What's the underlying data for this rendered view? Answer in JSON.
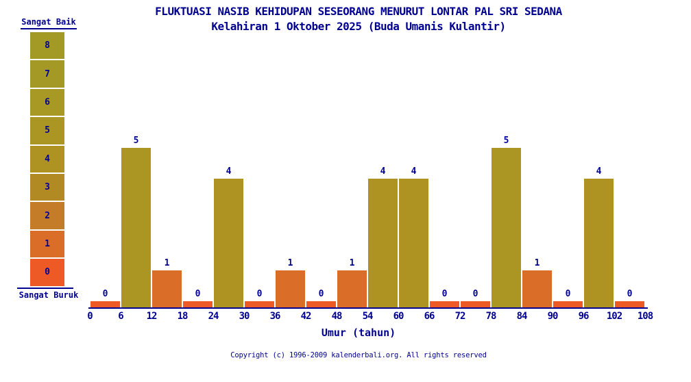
{
  "chart_data": {
    "type": "bar",
    "title": "FLUKTUASI NASIB KEHIDUPAN SESEORANG MENURUT LONTAR PAL SRI SEDANA",
    "subtitle": "Kelahiran 1 Oktober 2025 (Buda Umanis Kulantir)",
    "xlabel": "Umur (tahun)",
    "age_ranges": [
      "0-6",
      "6-12",
      "12-18",
      "18-24",
      "24-30",
      "30-36",
      "36-42",
      "42-48",
      "48-54",
      "54-60",
      "60-66",
      "66-72",
      "72-78",
      "78-84",
      "84-90",
      "90-96",
      "96-102",
      "102-108"
    ],
    "values": [
      0,
      5,
      1,
      0,
      4,
      0,
      1,
      0,
      1,
      4,
      4,
      0,
      0,
      5,
      1,
      0,
      4,
      0
    ],
    "x_ticks": [
      0,
      6,
      12,
      18,
      24,
      30,
      36,
      42,
      48,
      54,
      60,
      66,
      72,
      78,
      84,
      90,
      96,
      102,
      108
    ],
    "ylim": [
      0,
      8
    ],
    "grid": "off",
    "legend_position": "left",
    "value_colors": [
      "#EE5A26",
      "#DA6E28",
      "#C47C28",
      "#B28A24",
      "#AE9222",
      "#AB9623",
      "#A89824",
      "#A59925",
      "#A29A25"
    ]
  },
  "legend": {
    "top_label": "Sangat Baik",
    "bottom_label": "Sangat Buruk",
    "levels": [
      8,
      7,
      6,
      5,
      4,
      3,
      2,
      1,
      0
    ]
  },
  "footer": {
    "copyright": "Copyright (c) 1996-2009 kalenderbali.org. All rights reserved"
  },
  "colors": {
    "text": "#000090",
    "axis": "#000090",
    "background": "#FFFFFF"
  }
}
